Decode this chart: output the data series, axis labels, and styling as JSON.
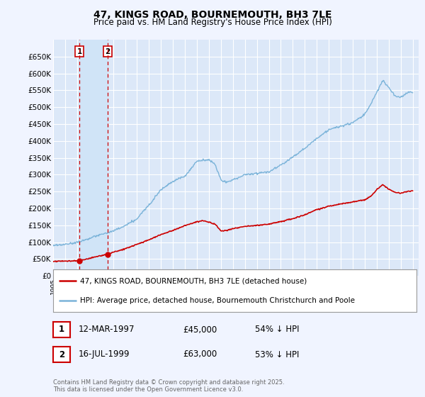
{
  "title": "47, KINGS ROAD, BOURNEMOUTH, BH3 7LE",
  "subtitle": "Price paid vs. HM Land Registry's House Price Index (HPI)",
  "background_color": "#f0f4ff",
  "plot_bg_color": "#dce8f8",
  "grid_color": "#ffffff",
  "hpi_color": "#7ab3d9",
  "price_color": "#cc0000",
  "marker_color": "#cc0000",
  "dashed_line_color": "#cc0000",
  "shade_color": "#d0e4f7",
  "ylim": [
    0,
    700000
  ],
  "yticks": [
    0,
    50000,
    100000,
    150000,
    200000,
    250000,
    300000,
    350000,
    400000,
    450000,
    500000,
    550000,
    600000,
    650000
  ],
  "legend_label_price": "47, KINGS ROAD, BOURNEMOUTH, BH3 7LE (detached house)",
  "legend_label_hpi": "HPI: Average price, detached house, Bournemouth Christchurch and Poole",
  "sale1_date": "12-MAR-1997",
  "sale1_price": "£45,000",
  "sale1_hpi": "54% ↓ HPI",
  "sale2_date": "16-JUL-1999",
  "sale2_price": "£63,000",
  "sale2_hpi": "53% ↓ HPI",
  "footer": "Contains HM Land Registry data © Crown copyright and database right 2025.\nThis data is licensed under the Open Government Licence v3.0.",
  "sale1_x": 1997.19,
  "sale1_y": 45000,
  "sale2_x": 1999.54,
  "sale2_y": 63000,
  "xmin": 1995,
  "xmax": 2025.5
}
